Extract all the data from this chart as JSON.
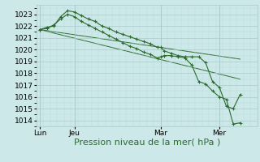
{
  "bg_color": "#cce8e8",
  "grid_major_color": "#aacccc",
  "grid_minor_color": "#bbdddd",
  "line_color": "#2d6b2d",
  "ylim": [
    1013.5,
    1023.8
  ],
  "xlabel": "Pression niveau de la mer( hPa )",
  "xlabel_fontsize": 8,
  "tick_fontsize": 6.5,
  "day_labels": [
    "Lun",
    "Jeu",
    "Mar",
    "Mer"
  ],
  "day_positions": [
    0.5,
    5.5,
    18.0,
    26.5
  ],
  "xlim": [
    0,
    32
  ],
  "line1_x": [
    0.5,
    1.5,
    2.5,
    3.5,
    4.5,
    5.5,
    6.5,
    7.5,
    8.5,
    9.5,
    10.5,
    11.5,
    12.5,
    13.5,
    14.5,
    15.5,
    16.5,
    17.5,
    18.0,
    18.5,
    19.5,
    20.5,
    21.5,
    22.5,
    23.5,
    24.5,
    25.5,
    26.5,
    27.5,
    28.5,
    29.5
  ],
  "line1_y": [
    1021.7,
    1021.9,
    1022.0,
    1022.8,
    1023.3,
    1023.2,
    1022.9,
    1022.6,
    1022.4,
    1022.0,
    1021.8,
    1021.5,
    1021.3,
    1021.1,
    1020.9,
    1020.7,
    1020.5,
    1020.2,
    1020.2,
    1019.9,
    1019.7,
    1019.5,
    1019.4,
    1019.4,
    1019.4,
    1018.9,
    1017.3,
    1016.8,
    1015.2,
    1015.0,
    1016.2
  ],
  "line2_x": [
    0.5,
    1.5,
    2.5,
    3.5,
    4.5,
    5.5,
    6.5,
    7.5,
    8.5,
    9.5,
    10.5,
    11.5,
    12.5,
    13.5,
    14.5,
    15.5,
    16.5,
    17.5,
    18.0,
    18.5,
    19.5,
    20.5,
    21.5,
    22.5,
    23.5,
    24.5,
    25.5,
    26.5,
    27.5,
    28.5,
    29.5
  ],
  "line2_y": [
    1021.7,
    1021.8,
    1022.1,
    1022.6,
    1023.0,
    1022.8,
    1022.4,
    1022.1,
    1021.8,
    1021.5,
    1021.2,
    1020.9,
    1020.6,
    1020.3,
    1020.1,
    1019.8,
    1019.6,
    1019.3,
    1019.4,
    1019.5,
    1019.5,
    1019.4,
    1019.3,
    1018.7,
    1017.3,
    1017.1,
    1016.5,
    1016.0,
    1015.8,
    1013.7,
    1013.8
  ],
  "line3_x": [
    0.5,
    29.5
  ],
  "line3_y": [
    1021.7,
    1019.2
  ],
  "line4_x": [
    0.5,
    29.5
  ],
  "line4_y": [
    1021.7,
    1017.5
  ],
  "vlines": [
    0.5,
    5.5,
    18.0,
    26.5
  ]
}
